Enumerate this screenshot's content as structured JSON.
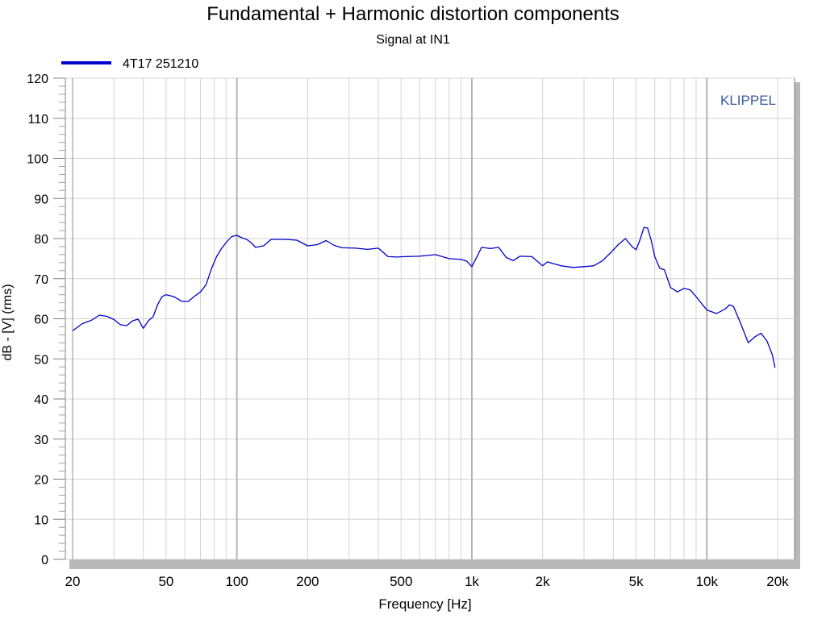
{
  "chart_data": {
    "type": "line",
    "title": "Fundamental + Harmonic distortion components",
    "subtitle": "Signal at IN1",
    "xlabel": "Frequency [Hz]",
    "ylabel": "dB - [V]  (rms)",
    "x_scale": "log",
    "xlim": [
      20,
      20000
    ],
    "ylim": [
      0,
      120
    ],
    "grid": true,
    "legend_position": "top-left",
    "watermark": "KLIPPEL",
    "x_ticks": [
      {
        "value": 20,
        "label": "20"
      },
      {
        "value": 50,
        "label": "50"
      },
      {
        "value": 100,
        "label": "100"
      },
      {
        "value": 200,
        "label": "200"
      },
      {
        "value": 500,
        "label": "500"
      },
      {
        "value": 1000,
        "label": "1k"
      },
      {
        "value": 2000,
        "label": "2k"
      },
      {
        "value": 5000,
        "label": "5k"
      },
      {
        "value": 10000,
        "label": "10k"
      },
      {
        "value": 20000,
        "label": "20k"
      }
    ],
    "y_ticks": [
      0,
      10,
      20,
      30,
      40,
      50,
      60,
      70,
      80,
      90,
      100,
      110,
      120
    ],
    "series": [
      {
        "name": "4T17  251210",
        "color": "#0000cc",
        "x": [
          20,
          22,
          24,
          26,
          28,
          30,
          32,
          34,
          36,
          38,
          40,
          42,
          44,
          46,
          48,
          50,
          54,
          58,
          62,
          66,
          70,
          74,
          78,
          82,
          86,
          90,
          95,
          100,
          105,
          110,
          115,
          120,
          130,
          140,
          150,
          160,
          180,
          200,
          220,
          240,
          260,
          280,
          320,
          360,
          400,
          440,
          480,
          520,
          600,
          700,
          800,
          900,
          950,
          1000,
          1050,
          1100,
          1200,
          1300,
          1400,
          1500,
          1600,
          1800,
          2000,
          2100,
          2200,
          2400,
          2700,
          3000,
          3300,
          3600,
          3900,
          4200,
          4500,
          4800,
          5000,
          5200,
          5400,
          5600,
          5800,
          6000,
          6300,
          6600,
          7000,
          7500,
          8000,
          8500,
          9000,
          9500,
          10000,
          11000,
          12000,
          12500,
          13000,
          14000,
          15000,
          16000,
          17000,
          18000,
          19000,
          19500
        ],
        "y": [
          57.0,
          58.8,
          59.6,
          60.9,
          60.6,
          59.8,
          58.5,
          58.3,
          59.5,
          59.9,
          57.6,
          59.5,
          60.5,
          63.5,
          65.5,
          66.0,
          65.5,
          64.4,
          64.3,
          65.6,
          66.7,
          68.5,
          72.5,
          75.5,
          77.5,
          79.0,
          80.5,
          80.8,
          80.2,
          79.8,
          79.0,
          77.8,
          78.2,
          79.8,
          79.8,
          79.8,
          79.6,
          78.2,
          78.5,
          79.5,
          78.3,
          77.7,
          77.6,
          77.3,
          77.6,
          75.5,
          75.4,
          75.5,
          75.6,
          76.0,
          75.0,
          74.8,
          74.4,
          73.0,
          75.4,
          77.8,
          77.5,
          77.8,
          75.3,
          74.5,
          75.6,
          75.5,
          73.2,
          74.2,
          73.8,
          73.2,
          72.8,
          73.0,
          73.2,
          74.5,
          76.5,
          78.5,
          80.0,
          78.0,
          77.2,
          79.8,
          82.8,
          82.6,
          79.5,
          75.5,
          72.6,
          72.2,
          67.8,
          66.7,
          67.6,
          67.2,
          65.5,
          63.8,
          62.2,
          61.3,
          62.5,
          63.5,
          63.0,
          58.5,
          54.0,
          55.5,
          56.4,
          54.5,
          51.0,
          47.8
        ]
      }
    ]
  }
}
